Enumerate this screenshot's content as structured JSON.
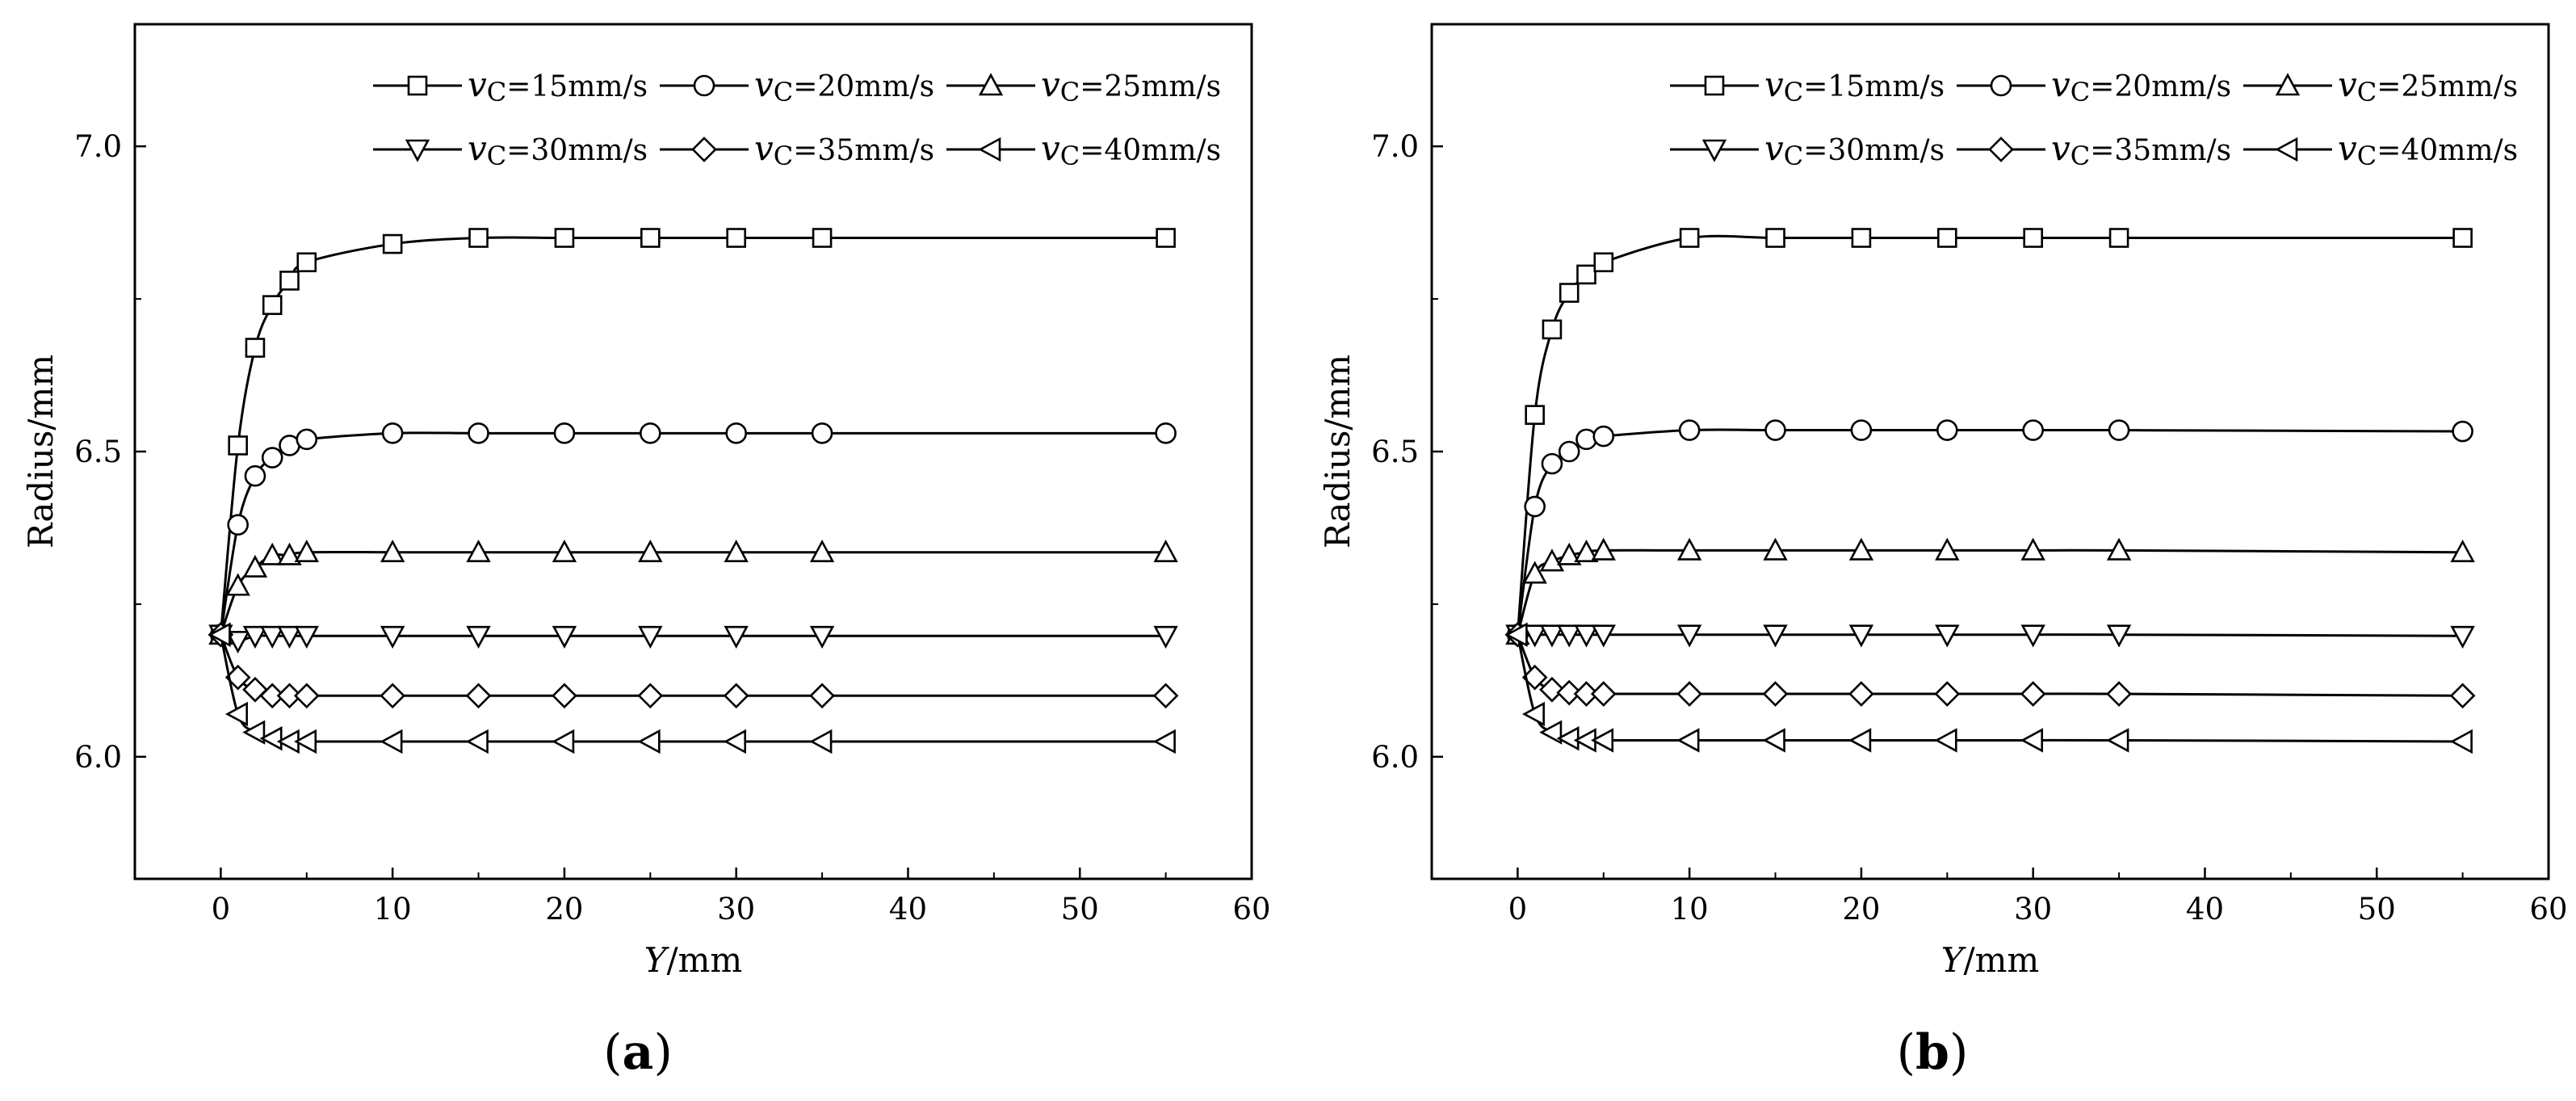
{
  "chart_data": [
    {
      "panel_label": "a",
      "type": "line",
      "xlabel_italic": "Y",
      "xlabel_unit": "/mm",
      "ylabel": "Radius/mm",
      "xlim": [
        -5,
        60
      ],
      "ylim": [
        5.8,
        7.2
      ],
      "xticks": [
        0,
        10,
        20,
        30,
        40,
        50,
        60
      ],
      "yticks": [
        6.0,
        6.5,
        7.0
      ],
      "ytick_labels": [
        "6.0",
        "6.5",
        "7.0"
      ],
      "grid": false,
      "legend_position": "top-right",
      "x": [
        0,
        1,
        2,
        3,
        4,
        5,
        10,
        15,
        20,
        25,
        30,
        35,
        55
      ],
      "series": [
        {
          "name_main": "v",
          "name_sub": "C",
          "name_rest": "=15mm/s",
          "marker": "square",
          "values": [
            6.2,
            6.51,
            6.67,
            6.74,
            6.78,
            6.81,
            6.84,
            6.85,
            6.85,
            6.85,
            6.85,
            6.85,
            6.85
          ]
        },
        {
          "name_main": "v",
          "name_sub": "C",
          "name_rest": "=20mm/s",
          "marker": "circle",
          "values": [
            6.2,
            6.38,
            6.46,
            6.49,
            6.51,
            6.52,
            6.53,
            6.53,
            6.53,
            6.53,
            6.53,
            6.53,
            6.53
          ]
        },
        {
          "name_main": "v",
          "name_sub": "C",
          "name_rest": "=25mm/s",
          "marker": "triangle-up",
          "values": [
            6.2,
            6.28,
            6.31,
            6.33,
            6.33,
            6.335,
            6.335,
            6.335,
            6.335,
            6.335,
            6.335,
            6.335,
            6.335
          ]
        },
        {
          "name_main": "v",
          "name_sub": "C",
          "name_rest": "=30mm/s",
          "marker": "triangle-down",
          "values": [
            6.2,
            6.19,
            6.198,
            6.198,
            6.198,
            6.198,
            6.198,
            6.198,
            6.198,
            6.198,
            6.198,
            6.198,
            6.198
          ]
        },
        {
          "name_main": "v",
          "name_sub": "C",
          "name_rest": "=35mm/s",
          "marker": "diamond",
          "values": [
            6.2,
            6.13,
            6.11,
            6.1,
            6.1,
            6.1,
            6.1,
            6.1,
            6.1,
            6.1,
            6.1,
            6.1,
            6.1
          ]
        },
        {
          "name_main": "v",
          "name_sub": "C",
          "name_rest": "=40mm/s",
          "marker": "triangle-left",
          "values": [
            6.2,
            6.07,
            6.04,
            6.03,
            6.025,
            6.025,
            6.025,
            6.025,
            6.025,
            6.025,
            6.025,
            6.025,
            6.025
          ]
        }
      ]
    },
    {
      "panel_label": "b",
      "type": "line",
      "xlabel_italic": "Y",
      "xlabel_unit": "/mm",
      "ylabel": "Radius/mm",
      "xlim": [
        -5,
        60
      ],
      "ylim": [
        5.8,
        7.2
      ],
      "xticks": [
        0,
        10,
        20,
        30,
        40,
        50,
        60
      ],
      "yticks": [
        6.0,
        6.5,
        7.0
      ],
      "ytick_labels": [
        "6.0",
        "6.5",
        "7.0"
      ],
      "grid": false,
      "legend_position": "top-right",
      "x": [
        0,
        1,
        2,
        3,
        4,
        5,
        10,
        15,
        20,
        25,
        30,
        35,
        55
      ],
      "series": [
        {
          "name_main": "v",
          "name_sub": "C",
          "name_rest": "=15mm/s",
          "marker": "square",
          "values": [
            6.2,
            6.56,
            6.7,
            6.76,
            6.79,
            6.81,
            6.85,
            6.85,
            6.85,
            6.85,
            6.85,
            6.85,
            6.85
          ]
        },
        {
          "name_main": "v",
          "name_sub": "C",
          "name_rest": "=20mm/s",
          "marker": "circle",
          "values": [
            6.2,
            6.41,
            6.48,
            6.5,
            6.52,
            6.525,
            6.535,
            6.535,
            6.535,
            6.535,
            6.535,
            6.535,
            6.533
          ]
        },
        {
          "name_main": "v",
          "name_sub": "C",
          "name_rest": "=25mm/s",
          "marker": "triangle-up",
          "values": [
            6.2,
            6.3,
            6.32,
            6.33,
            6.335,
            6.338,
            6.338,
            6.338,
            6.338,
            6.338,
            6.338,
            6.338,
            6.335
          ]
        },
        {
          "name_main": "v",
          "name_sub": "C",
          "name_rest": "=30mm/s",
          "marker": "triangle-down",
          "values": [
            6.2,
            6.2,
            6.2,
            6.2,
            6.2,
            6.2,
            6.2,
            6.2,
            6.2,
            6.2,
            6.2,
            6.2,
            6.198
          ]
        },
        {
          "name_main": "v",
          "name_sub": "C",
          "name_rest": "=35mm/s",
          "marker": "diamond",
          "values": [
            6.2,
            6.13,
            6.11,
            6.105,
            6.103,
            6.103,
            6.103,
            6.103,
            6.103,
            6.103,
            6.103,
            6.103,
            6.1
          ]
        },
        {
          "name_main": "v",
          "name_sub": "C",
          "name_rest": "=40mm/s",
          "marker": "triangle-left",
          "values": [
            6.2,
            6.07,
            6.04,
            6.03,
            6.027,
            6.027,
            6.027,
            6.027,
            6.027,
            6.027,
            6.027,
            6.027,
            6.025
          ]
        }
      ]
    }
  ]
}
